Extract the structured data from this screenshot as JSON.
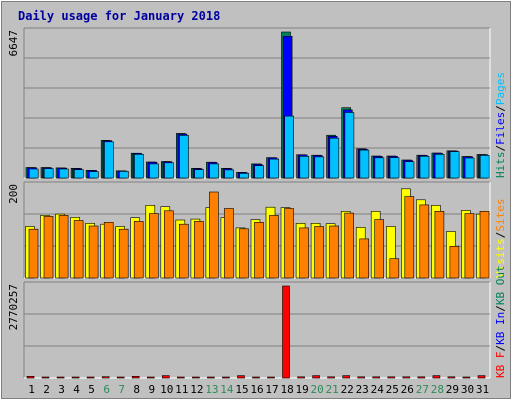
{
  "colors": {
    "background": "#c0c0c0",
    "plot_background": "#c0c0c0",
    "grid": "#808080",
    "title": "#0000a0",
    "weekend": "#2e8b57",
    "weekday": "#000000",
    "hits": "#00805c",
    "files": "#0000ff",
    "pages": "#00c0ff",
    "visits": "#ffff00",
    "sites": "#ff8000",
    "kb_f": "#ff0000",
    "kb_in": "#0000ff",
    "kb_out": "#00805c"
  },
  "chart_data": {
    "type": "bar",
    "title": "Daily usage for January 2018",
    "categories": [
      "1",
      "2",
      "3",
      "4",
      "5",
      "6",
      "7",
      "8",
      "9",
      "10",
      "11",
      "12",
      "13",
      "14",
      "15",
      "16",
      "17",
      "18",
      "19",
      "20",
      "21",
      "22",
      "23",
      "24",
      "25",
      "26",
      "27",
      "28",
      "29",
      "30",
      "31"
    ],
    "weekend_days": [
      "6",
      "7",
      "13",
      "14",
      "20",
      "21",
      "27",
      "28"
    ],
    "grid": true,
    "panels": [
      {
        "id": "hits",
        "max_label": "6647",
        "ylim": [
          0,
          6647
        ],
        "legend": [
          {
            "text": "Hits",
            "color": "#00805c"
          },
          {
            "text": "/",
            "color": "#000000"
          },
          {
            "text": "Files",
            "color": "#0000ff"
          },
          {
            "text": "/",
            "color": "#000000"
          },
          {
            "text": "Pages",
            "color": "#00c0ff"
          }
        ],
        "series": [
          {
            "name": "Hits",
            "values": [
              480,
              480,
              460,
              440,
              350,
              1710,
              330,
              1130,
              730,
              750,
              2030,
              440,
              720,
              440,
              260,
              640,
              930,
              6647,
              1060,
              1040,
              1950,
              3200,
              1330,
              1000,
              1000,
              820,
              1040,
              1140,
              1240,
              980,
              1070
            ]
          },
          {
            "name": "Files",
            "values": [
              470,
              470,
              450,
              430,
              340,
              1700,
              320,
              1120,
              720,
              740,
              2000,
              430,
              710,
              430,
              250,
              630,
              920,
              6450,
              1050,
              1030,
              1900,
              3100,
              1310,
              990,
              990,
              810,
              1030,
              1130,
              1230,
              970,
              1060
            ]
          },
          {
            "name": "Pages",
            "values": [
              410,
              430,
              410,
              380,
              290,
              1650,
              300,
              1080,
              640,
              690,
              1940,
              380,
              640,
              370,
              210,
              560,
              860,
              2820,
              990,
              960,
              1810,
              2980,
              1270,
              920,
              930,
              740,
              990,
              1080,
              1200,
              910,
              1030
            ]
          }
        ]
      },
      {
        "id": "visits",
        "max_label": "200",
        "ylim": [
          0,
          200
        ],
        "legend": [
          {
            "text": "Visits",
            "color": "#ffff00"
          },
          {
            "text": "/",
            "color": "#000000"
          },
          {
            "text": "Sites",
            "color": "#ff8000"
          }
        ],
        "series": [
          {
            "name": "Visits",
            "values": [
              112,
              136,
              139,
              132,
              119,
              117,
              112,
              131,
              158,
              155,
              126,
              128,
              153,
              131,
              109,
              127,
              154,
              153,
              119,
              119,
              118,
              145,
              110,
              145,
              112,
              194,
              170,
              158,
              101,
              147,
              139
            ]
          },
          {
            "name": "Sites",
            "values": [
              106,
              134,
              136,
              125,
              113,
              121,
              106,
              123,
              140,
              146,
              117,
              123,
              187,
              151,
              107,
              121,
              136,
              151,
              109,
              112,
              113,
              141,
              85,
              127,
              42,
              177,
              159,
              145,
              69,
              140,
              145
            ]
          }
        ]
      },
      {
        "id": "kbytes",
        "max_label": "2770257",
        "ylim": [
          0,
          2770257
        ],
        "legend": [
          {
            "text": "KB F",
            "color": "#ff0000"
          },
          {
            "text": "/",
            "color": "#000000"
          },
          {
            "text": "KB In",
            "color": "#0000ff"
          },
          {
            "text": "/",
            "color": "#000000"
          },
          {
            "text": "KB Out",
            "color": "#00805c"
          }
        ],
        "series": [
          {
            "name": "KB F",
            "values": [
              50000,
              21000,
              21000,
              21000,
              21000,
              40000,
              21000,
              50000,
              21000,
              71000,
              28000,
              21000,
              21000,
              21000,
              71000,
              21000,
              21000,
              2770257,
              35000,
              71000,
              35000,
              71000,
              35000,
              35000,
              35000,
              35000,
              35000,
              71000,
              35000,
              21000,
              71000
            ]
          }
        ]
      }
    ]
  }
}
